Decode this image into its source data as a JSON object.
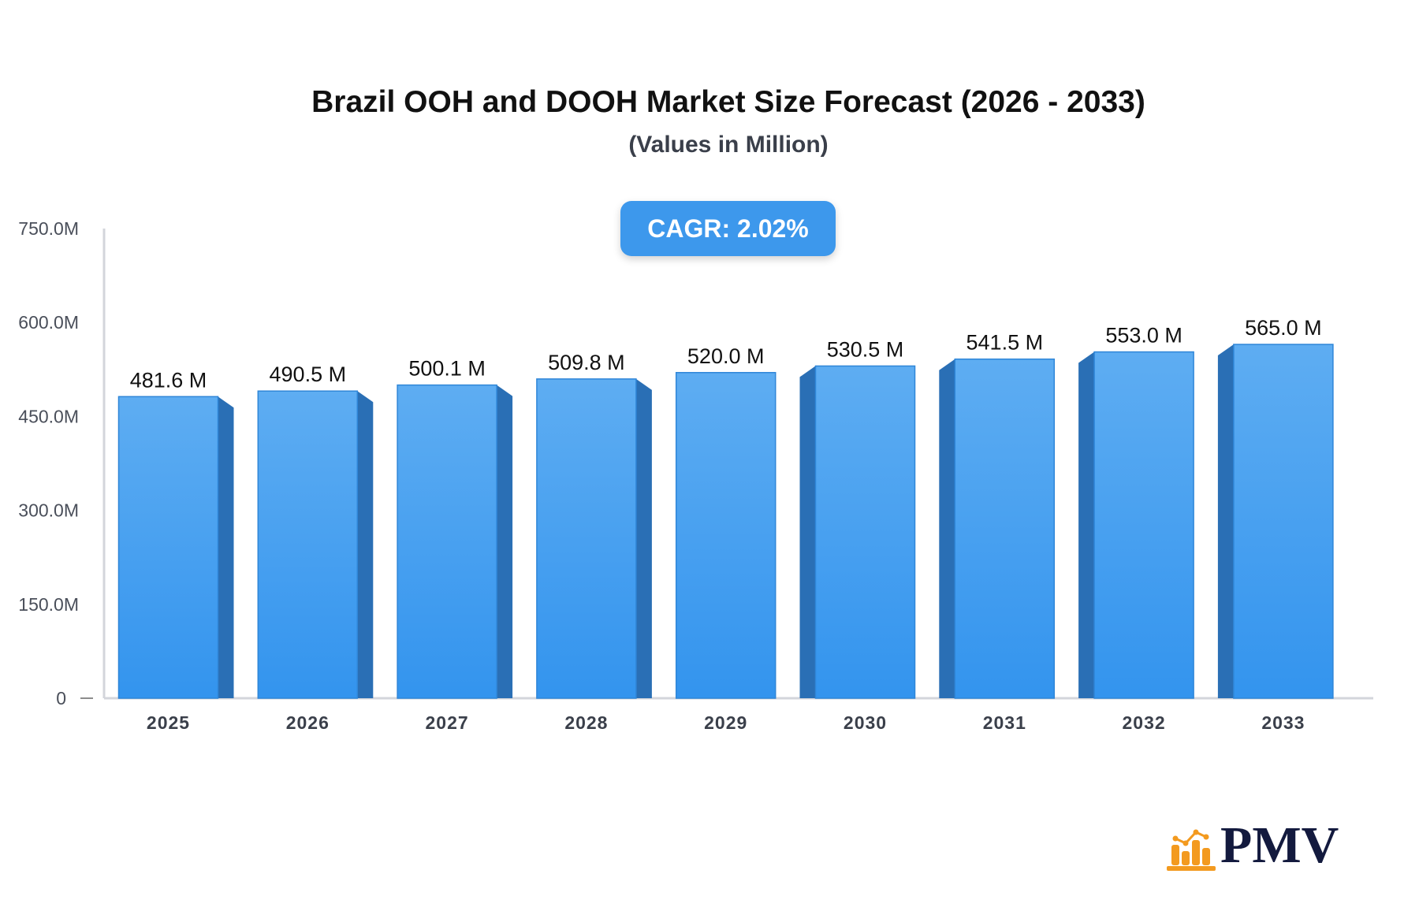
{
  "chart_data": {
    "type": "bar",
    "title": "Brazil OOH and DOOH Market Size Forecast (2026 - 2033)",
    "subtitle": "(Values in Million)",
    "annotation": "CAGR: 2.02%",
    "categories": [
      "2025",
      "2026",
      "2027",
      "2028",
      "2029",
      "2030",
      "2031",
      "2032",
      "2033"
    ],
    "values": [
      481.6,
      490.5,
      500.1,
      509.8,
      520.0,
      530.5,
      541.5,
      553.0,
      565.0
    ],
    "data_labels": [
      "481.6 M",
      "490.5 M",
      "500.1 M",
      "509.8 M",
      "520.0 M",
      "530.5 M",
      "541.5 M",
      "553.0 M",
      "565.0 M"
    ],
    "yticks": [
      0,
      150,
      300,
      450,
      600,
      750
    ],
    "ytick_labels": [
      "0",
      "150.0M",
      "300.0M",
      "450.0M",
      "600.0M",
      "750.0M"
    ],
    "ylim": [
      0,
      750
    ],
    "grid": false,
    "bar_color": "#3d98ec",
    "bar_side_color": "#2a6fb5",
    "annotation_color": "#3d98ec"
  },
  "brand": {
    "logo_text": "PMV",
    "logo_color": "#f39a1f",
    "text_color": "#131a3e"
  }
}
